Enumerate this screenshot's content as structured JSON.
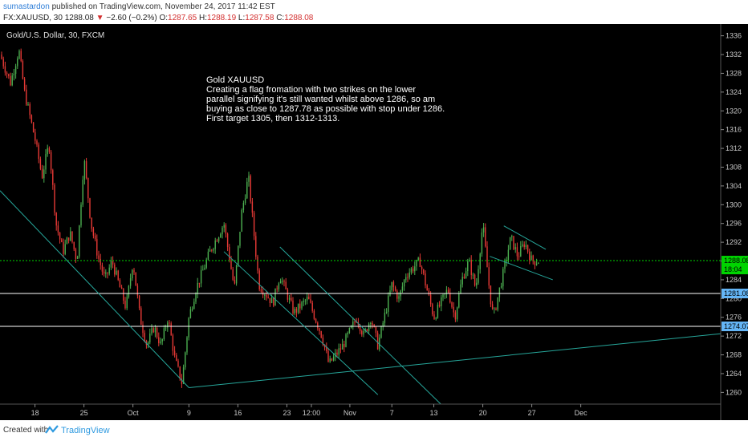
{
  "header": {
    "author": "sumastardon",
    "published_text": "published on TradingView.com, November 24, 2017 11:42 EST",
    "symbol_interval": "FX:XAUUSD, 30",
    "last_price": "1288.08",
    "change_arrow": "▼",
    "change_text": "−2.60 (−0.2%)",
    "ohlc_open_label": "O:",
    "ohlc_open": "1287.65",
    "ohlc_high_label": "H:",
    "ohlc_high": "1288.19",
    "ohlc_low_label": "L:",
    "ohlc_low": "1287.58",
    "ohlc_close_label": "C:",
    "ohlc_close": "1288.08"
  },
  "footer": {
    "created_with": "Created with",
    "brand": "TradingView"
  },
  "colors": {
    "background": "#000000",
    "up_candle": "#4caf50",
    "down_candle": "#e53935",
    "trendline": "#26a69a",
    "price_line": "#00d400",
    "level_line": "#ffffff",
    "level_label": "#64b5f6",
    "countdown_label": "#00d400"
  },
  "chart_data": {
    "type": "line",
    "title": "Gold/U.S. Dollar, 30, FXCM",
    "annotation": [
      "Gold  XAUUSD",
      "Creating a flag fromation with two strikes on the lower",
      "parallel signifying it's still wanted whilst above 1286, so am",
      "buying as close to 1287.78 as possible with stop under 1286.",
      "First target 1305, then 1312-1313."
    ],
    "y_ticks": [
      1260,
      1264,
      1268,
      1272,
      1276,
      1280,
      1284,
      1288,
      1292,
      1296,
      1300,
      1304,
      1308,
      1312,
      1316,
      1320,
      1324,
      1328,
      1332,
      1336
    ],
    "ylim": [
      1257.5,
      1338.5
    ],
    "x_ticks": [
      "18",
      "25",
      "Oct",
      "9",
      "16",
      "23",
      "12:00",
      "Nov",
      "7",
      "13",
      "20",
      "27",
      "Dec"
    ],
    "x_tick_days": [
      -13,
      -6,
      1,
      9,
      16,
      23,
      26.5,
      32,
      38,
      44,
      51,
      58,
      65
    ],
    "x_range_days": [
      -18,
      85
    ],
    "price_path": {
      "x": [
        -18,
        -16.5,
        -15.3,
        -14.5,
        -13,
        -12,
        -11,
        -10,
        -9,
        -8,
        -7,
        -6,
        -5,
        -4,
        -3,
        -2,
        0,
        1,
        2,
        3,
        4,
        5,
        6,
        7,
        8,
        9,
        10,
        12,
        14,
        15.5,
        16.5,
        17.5,
        19,
        21,
        22,
        24,
        26,
        28,
        29,
        31,
        33,
        34,
        35,
        36,
        38,
        39,
        40,
        42,
        44,
        46,
        47,
        48,
        49,
        50,
        51,
        52,
        52.5,
        54,
        55,
        56,
        57,
        58,
        59
      ],
      "y": [
        1332,
        1326,
        1333,
        1324,
        1314,
        1306,
        1313,
        1296,
        1290,
        1294,
        1288,
        1310,
        1296,
        1289,
        1284,
        1288,
        1278,
        1288,
        1276,
        1270,
        1274,
        1270,
        1276,
        1267,
        1262,
        1276,
        1282,
        1290,
        1296,
        1282,
        1298,
        1306,
        1283,
        1279,
        1285,
        1277,
        1280,
        1272,
        1266,
        1270,
        1276,
        1272,
        1276,
        1270,
        1283,
        1280,
        1285,
        1288,
        1276,
        1282,
        1276,
        1284,
        1288,
        1282,
        1296,
        1281,
        1276,
        1286,
        1293,
        1289,
        1292,
        1288,
        1288
      ]
    },
    "series": [
      {
        "name": "",
        "kind": "hline",
        "y": 1288.08
      },
      {
        "name": "",
        "kind": "hline",
        "y": 1281.08
      },
      {
        "name": "",
        "kind": "hline",
        "y": 1274.07
      },
      {
        "name": "",
        "kind": "trendline",
        "x": [
          -18,
          9
        ],
        "y": [
          1303,
          1261
        ]
      },
      {
        "name": "",
        "kind": "trendline",
        "x": [
          9,
          85
        ],
        "y": [
          1261,
          1272.5
        ]
      },
      {
        "name": "",
        "kind": "trendline",
        "x": [
          14,
          36
        ],
        "y": [
          1290,
          1259.5
        ]
      },
      {
        "name": "",
        "kind": "trendline",
        "x": [
          22,
          45
        ],
        "y": [
          1291,
          1257.5
        ]
      },
      {
        "name": "",
        "kind": "trendline",
        "x": [
          54,
          60
        ],
        "y": [
          1295.5,
          1290.5
        ]
      },
      {
        "name": "",
        "kind": "trendline",
        "x": [
          52,
          61
        ],
        "y": [
          1289,
          1284
        ]
      }
    ],
    "price_labels": [
      {
        "text": "1288.08",
        "y": 1288.08,
        "role": "last-price"
      },
      {
        "text": "18:04",
        "y": 1286.2,
        "role": "countdown"
      },
      {
        "text": "1281.08",
        "y": 1281.08,
        "role": "level"
      },
      {
        "text": "1274.07",
        "y": 1274.07,
        "role": "level"
      }
    ],
    "grid": false,
    "xlabel": "",
    "ylabel": ""
  }
}
